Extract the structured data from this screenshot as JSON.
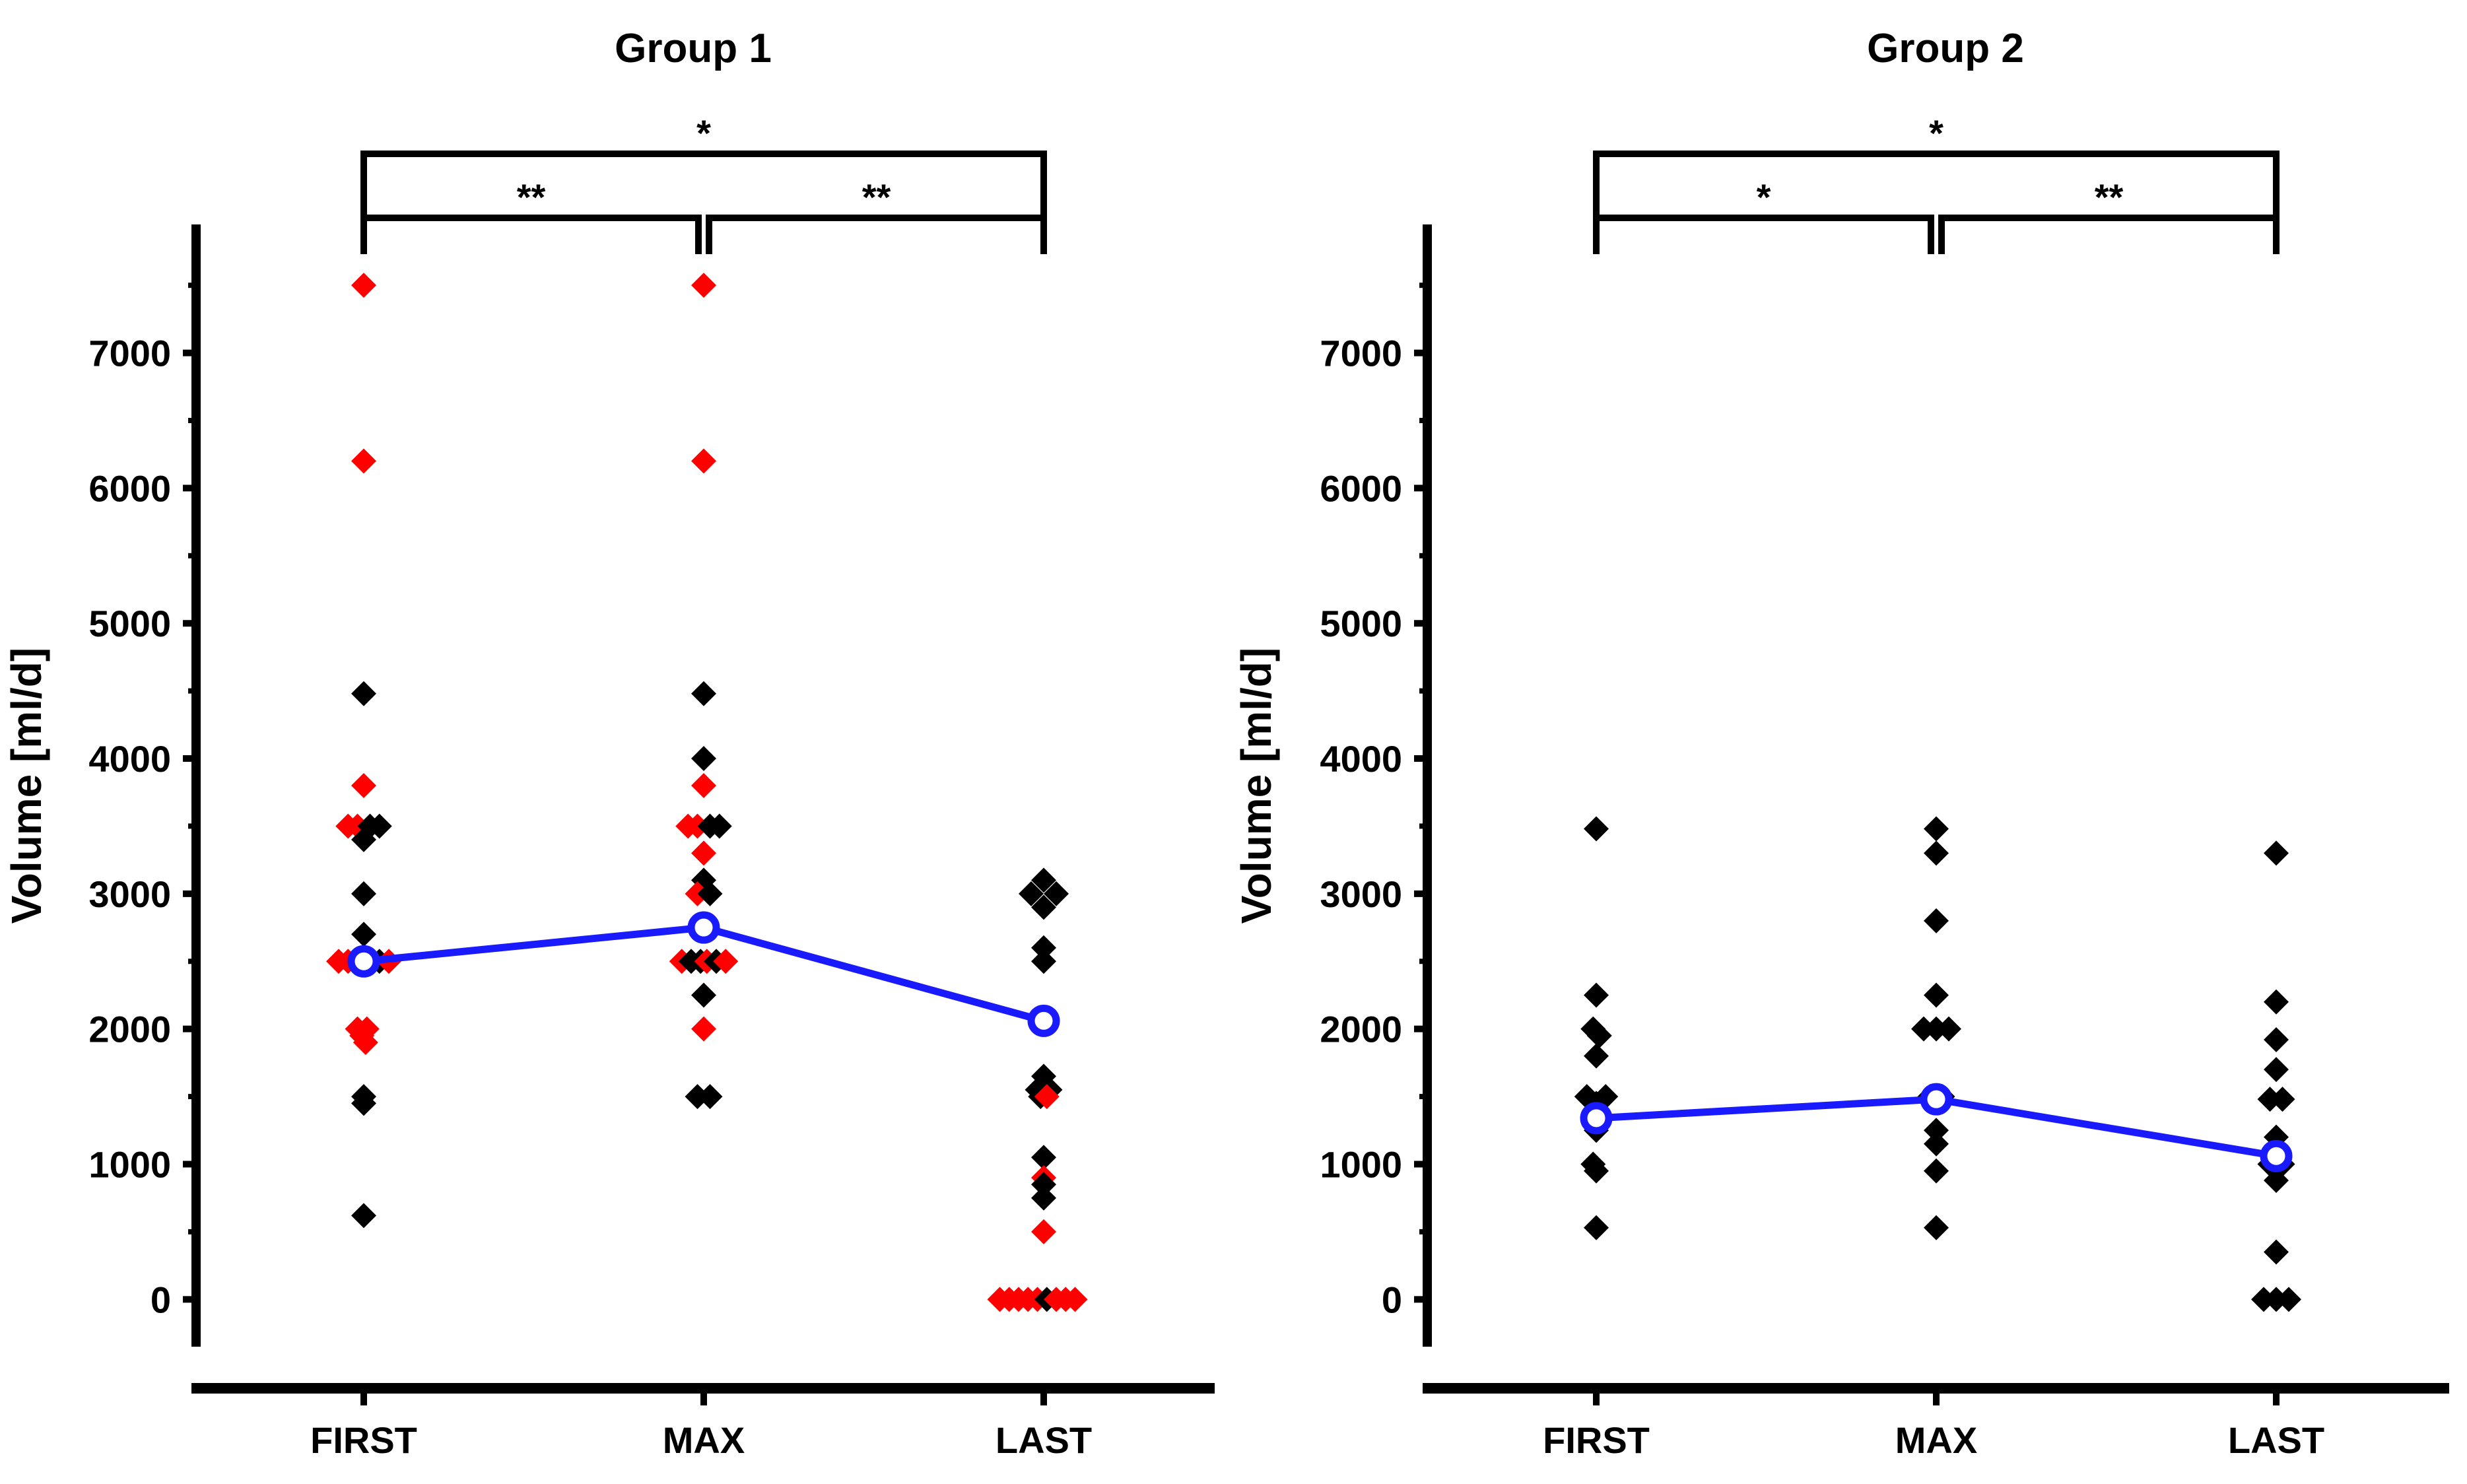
{
  "figure": {
    "colors": {
      "axis": "#000000",
      "black_points": "#000000",
      "red_points": "#ff0000",
      "mean_line": "#1a1aff",
      "background": "#ffffff"
    }
  },
  "chart_data": [
    {
      "type": "scatter",
      "title": "Group 1",
      "xlabel": "",
      "ylabel": "Volume [ml/d]",
      "categories": [
        "FIRST",
        "MAX",
        "LAST"
      ],
      "ylim": [
        -350,
        7950
      ],
      "yticks": [
        0,
        1000,
        2000,
        3000,
        4000,
        5000,
        6000,
        7000
      ],
      "ytick_labels": [
        "0",
        "1000",
        "2000",
        "3000",
        "4000",
        "5000",
        "6000",
        "7000"
      ],
      "grid": false,
      "marker": "diamond",
      "points": [
        {
          "cat": "FIRST",
          "dx": 0,
          "y": 7500,
          "color": "red"
        },
        {
          "cat": "FIRST",
          "dx": 0,
          "y": 6200,
          "color": "red"
        },
        {
          "cat": "FIRST",
          "dx": 0,
          "y": 4480,
          "color": "black"
        },
        {
          "cat": "FIRST",
          "dx": 0,
          "y": 3800,
          "color": "red"
        },
        {
          "cat": "FIRST",
          "dx": -0.25,
          "y": 3500,
          "color": "red"
        },
        {
          "cat": "FIRST",
          "dx": -0.1,
          "y": 3500,
          "color": "red"
        },
        {
          "cat": "FIRST",
          "dx": 0.1,
          "y": 3500,
          "color": "black"
        },
        {
          "cat": "FIRST",
          "dx": 0.25,
          "y": 3500,
          "color": "black"
        },
        {
          "cat": "FIRST",
          "dx": 0,
          "y": 3400,
          "color": "black"
        },
        {
          "cat": "FIRST",
          "dx": 0,
          "y": 3000,
          "color": "black"
        },
        {
          "cat": "FIRST",
          "dx": 0,
          "y": 2700,
          "color": "black"
        },
        {
          "cat": "FIRST",
          "dx": -0.4,
          "y": 2500,
          "color": "red"
        },
        {
          "cat": "FIRST",
          "dx": -0.25,
          "y": 2500,
          "color": "red"
        },
        {
          "cat": "FIRST",
          "dx": -0.1,
          "y": 2500,
          "color": "red"
        },
        {
          "cat": "FIRST",
          "dx": 0,
          "y": 2500,
          "color": "black"
        },
        {
          "cat": "FIRST",
          "dx": 0.1,
          "y": 2500,
          "color": "black"
        },
        {
          "cat": "FIRST",
          "dx": 0.25,
          "y": 2500,
          "color": "black"
        },
        {
          "cat": "FIRST",
          "dx": 0.4,
          "y": 2500,
          "color": "red"
        },
        {
          "cat": "FIRST",
          "dx": -0.1,
          "y": 2000,
          "color": "red"
        },
        {
          "cat": "FIRST",
          "dx": 0.05,
          "y": 2000,
          "color": "red"
        },
        {
          "cat": "FIRST",
          "dx": -0.03,
          "y": 1950,
          "color": "red"
        },
        {
          "cat": "FIRST",
          "dx": 0.03,
          "y": 1900,
          "color": "red"
        },
        {
          "cat": "FIRST",
          "dx": 0,
          "y": 1500,
          "color": "black"
        },
        {
          "cat": "FIRST",
          "dx": 0,
          "y": 1450,
          "color": "black"
        },
        {
          "cat": "FIRST",
          "dx": 0,
          "y": 620,
          "color": "black"
        },
        {
          "cat": "MAX",
          "dx": 0,
          "y": 7500,
          "color": "red"
        },
        {
          "cat": "MAX",
          "dx": 0,
          "y": 6200,
          "color": "red"
        },
        {
          "cat": "MAX",
          "dx": 0,
          "y": 4480,
          "color": "black"
        },
        {
          "cat": "MAX",
          "dx": 0,
          "y": 4000,
          "color": "black"
        },
        {
          "cat": "MAX",
          "dx": 0,
          "y": 3800,
          "color": "red"
        },
        {
          "cat": "MAX",
          "dx": -0.25,
          "y": 3500,
          "color": "red"
        },
        {
          "cat": "MAX",
          "dx": -0.1,
          "y": 3500,
          "color": "red"
        },
        {
          "cat": "MAX",
          "dx": 0.1,
          "y": 3500,
          "color": "black"
        },
        {
          "cat": "MAX",
          "dx": 0.25,
          "y": 3500,
          "color": "black"
        },
        {
          "cat": "MAX",
          "dx": 0,
          "y": 3300,
          "color": "red"
        },
        {
          "cat": "MAX",
          "dx": 0,
          "y": 3100,
          "color": "black"
        },
        {
          "cat": "MAX",
          "dx": -0.1,
          "y": 3000,
          "color": "red"
        },
        {
          "cat": "MAX",
          "dx": 0.1,
          "y": 3000,
          "color": "black"
        },
        {
          "cat": "MAX",
          "dx": -0.35,
          "y": 2500,
          "color": "red"
        },
        {
          "cat": "MAX",
          "dx": -0.2,
          "y": 2500,
          "color": "black"
        },
        {
          "cat": "MAX",
          "dx": -0.05,
          "y": 2500,
          "color": "black"
        },
        {
          "cat": "MAX",
          "dx": 0.05,
          "y": 2500,
          "color": "red"
        },
        {
          "cat": "MAX",
          "dx": 0.2,
          "y": 2500,
          "color": "black"
        },
        {
          "cat": "MAX",
          "dx": 0.35,
          "y": 2500,
          "color": "red"
        },
        {
          "cat": "MAX",
          "dx": 0,
          "y": 2250,
          "color": "black"
        },
        {
          "cat": "MAX",
          "dx": 0,
          "y": 2000,
          "color": "red"
        },
        {
          "cat": "MAX",
          "dx": -0.1,
          "y": 1500,
          "color": "black"
        },
        {
          "cat": "MAX",
          "dx": 0.1,
          "y": 1500,
          "color": "black"
        },
        {
          "cat": "LAST",
          "dx": -0.2,
          "y": 3000,
          "color": "black"
        },
        {
          "cat": "LAST",
          "dx": 0,
          "y": 3100,
          "color": "black"
        },
        {
          "cat": "LAST",
          "dx": 0,
          "y": 2900,
          "color": "black"
        },
        {
          "cat": "LAST",
          "dx": 0.2,
          "y": 3000,
          "color": "black"
        },
        {
          "cat": "LAST",
          "dx": 0,
          "y": 2600,
          "color": "black"
        },
        {
          "cat": "LAST",
          "dx": 0,
          "y": 2500,
          "color": "black"
        },
        {
          "cat": "LAST",
          "dx": 0,
          "y": 2050,
          "color": "black"
        },
        {
          "cat": "LAST",
          "dx": 0,
          "y": 1650,
          "color": "black"
        },
        {
          "cat": "LAST",
          "dx": -0.1,
          "y": 1550,
          "color": "black"
        },
        {
          "cat": "LAST",
          "dx": 0.1,
          "y": 1550,
          "color": "black"
        },
        {
          "cat": "LAST",
          "dx": -0.05,
          "y": 1500,
          "color": "black"
        },
        {
          "cat": "LAST",
          "dx": 0.05,
          "y": 1500,
          "color": "red"
        },
        {
          "cat": "LAST",
          "dx": 0,
          "y": 1050,
          "color": "black"
        },
        {
          "cat": "LAST",
          "dx": 0,
          "y": 900,
          "color": "red"
        },
        {
          "cat": "LAST",
          "dx": 0,
          "y": 850,
          "color": "black"
        },
        {
          "cat": "LAST",
          "dx": 0,
          "y": 750,
          "color": "black"
        },
        {
          "cat": "LAST",
          "dx": 0,
          "y": 500,
          "color": "red"
        },
        {
          "cat": "LAST",
          "dx": -0.7,
          "y": 0,
          "color": "red"
        },
        {
          "cat": "LAST",
          "dx": -0.55,
          "y": 0,
          "color": "red"
        },
        {
          "cat": "LAST",
          "dx": -0.4,
          "y": 0,
          "color": "red"
        },
        {
          "cat": "LAST",
          "dx": -0.25,
          "y": 0,
          "color": "red"
        },
        {
          "cat": "LAST",
          "dx": -0.1,
          "y": 0,
          "color": "red"
        },
        {
          "cat": "LAST",
          "dx": 0.05,
          "y": 0,
          "color": "black"
        },
        {
          "cat": "LAST",
          "dx": 0.2,
          "y": 0,
          "color": "red"
        },
        {
          "cat": "LAST",
          "dx": 0.35,
          "y": 0,
          "color": "red"
        },
        {
          "cat": "LAST",
          "dx": 0.5,
          "y": 0,
          "color": "red"
        }
      ],
      "mean_series": {
        "values": [
          2500,
          2750,
          2060
        ]
      },
      "significance": [
        {
          "from": "FIRST",
          "to": "MAX",
          "label": "**",
          "level": 1
        },
        {
          "from": "MAX",
          "to": "LAST",
          "label": "**",
          "level": 1
        },
        {
          "from": "FIRST",
          "to": "LAST",
          "label": "*",
          "level": 2
        }
      ]
    },
    {
      "type": "scatter",
      "title": "Group 2",
      "xlabel": "",
      "ylabel": "Volume [ml/d]",
      "categories": [
        "FIRST",
        "MAX",
        "LAST"
      ],
      "ylim": [
        -350,
        7950
      ],
      "yticks": [
        0,
        1000,
        2000,
        3000,
        4000,
        5000,
        6000,
        7000
      ],
      "ytick_labels": [
        "0",
        "1000",
        "2000",
        "3000",
        "4000",
        "5000",
        "6000",
        "7000"
      ],
      "grid": false,
      "marker": "diamond",
      "points": [
        {
          "cat": "FIRST",
          "dx": 0,
          "y": 3480,
          "color": "black"
        },
        {
          "cat": "FIRST",
          "dx": 0,
          "y": 2250,
          "color": "black"
        },
        {
          "cat": "FIRST",
          "dx": -0.05,
          "y": 2000,
          "color": "black"
        },
        {
          "cat": "FIRST",
          "dx": 0.05,
          "y": 1950,
          "color": "black"
        },
        {
          "cat": "FIRST",
          "dx": 0,
          "y": 1800,
          "color": "black"
        },
        {
          "cat": "FIRST",
          "dx": -0.15,
          "y": 1500,
          "color": "black"
        },
        {
          "cat": "FIRST",
          "dx": 0.15,
          "y": 1500,
          "color": "black"
        },
        {
          "cat": "FIRST",
          "dx": 0,
          "y": 1450,
          "color": "black"
        },
        {
          "cat": "FIRST",
          "dx": 0,
          "y": 1300,
          "color": "black"
        },
        {
          "cat": "FIRST",
          "dx": 0,
          "y": 1250,
          "color": "black"
        },
        {
          "cat": "FIRST",
          "dx": -0.05,
          "y": 1000,
          "color": "black"
        },
        {
          "cat": "FIRST",
          "dx": 0,
          "y": 950,
          "color": "black"
        },
        {
          "cat": "FIRST",
          "dx": 0,
          "y": 530,
          "color": "black"
        },
        {
          "cat": "MAX",
          "dx": 0,
          "y": 3480,
          "color": "black"
        },
        {
          "cat": "MAX",
          "dx": 0,
          "y": 3300,
          "color": "black"
        },
        {
          "cat": "MAX",
          "dx": 0,
          "y": 2800,
          "color": "black"
        },
        {
          "cat": "MAX",
          "dx": 0,
          "y": 2250,
          "color": "black"
        },
        {
          "cat": "MAX",
          "dx": -0.2,
          "y": 2000,
          "color": "black"
        },
        {
          "cat": "MAX",
          "dx": 0,
          "y": 2000,
          "color": "black"
        },
        {
          "cat": "MAX",
          "dx": 0.2,
          "y": 2000,
          "color": "black"
        },
        {
          "cat": "MAX",
          "dx": -0.1,
          "y": 1500,
          "color": "black"
        },
        {
          "cat": "MAX",
          "dx": 0.1,
          "y": 1500,
          "color": "black"
        },
        {
          "cat": "MAX",
          "dx": 0,
          "y": 1250,
          "color": "black"
        },
        {
          "cat": "MAX",
          "dx": 0,
          "y": 1150,
          "color": "black"
        },
        {
          "cat": "MAX",
          "dx": 0,
          "y": 950,
          "color": "black"
        },
        {
          "cat": "MAX",
          "dx": 0,
          "y": 530,
          "color": "black"
        },
        {
          "cat": "LAST",
          "dx": 0,
          "y": 3300,
          "color": "black"
        },
        {
          "cat": "LAST",
          "dx": 0,
          "y": 2200,
          "color": "black"
        },
        {
          "cat": "LAST",
          "dx": 0,
          "y": 1920,
          "color": "black"
        },
        {
          "cat": "LAST",
          "dx": 0,
          "y": 1700,
          "color": "black"
        },
        {
          "cat": "LAST",
          "dx": -0.1,
          "y": 1480,
          "color": "black"
        },
        {
          "cat": "LAST",
          "dx": 0.1,
          "y": 1480,
          "color": "black"
        },
        {
          "cat": "LAST",
          "dx": 0,
          "y": 1200,
          "color": "black"
        },
        {
          "cat": "LAST",
          "dx": -0.1,
          "y": 1000,
          "color": "black"
        },
        {
          "cat": "LAST",
          "dx": 0.1,
          "y": 1000,
          "color": "black"
        },
        {
          "cat": "LAST",
          "dx": 0,
          "y": 880,
          "color": "black"
        },
        {
          "cat": "LAST",
          "dx": 0,
          "y": 350,
          "color": "black"
        },
        {
          "cat": "LAST",
          "dx": -0.2,
          "y": 0,
          "color": "black"
        },
        {
          "cat": "LAST",
          "dx": 0,
          "y": 0,
          "color": "black"
        },
        {
          "cat": "LAST",
          "dx": 0.2,
          "y": 0,
          "color": "black"
        }
      ],
      "mean_series": {
        "values": [
          1340,
          1480,
          1060
        ]
      },
      "significance": [
        {
          "from": "FIRST",
          "to": "MAX",
          "label": "*",
          "level": 1
        },
        {
          "from": "MAX",
          "to": "LAST",
          "label": "**",
          "level": 1
        },
        {
          "from": "FIRST",
          "to": "LAST",
          "label": "*",
          "level": 2
        }
      ]
    }
  ]
}
